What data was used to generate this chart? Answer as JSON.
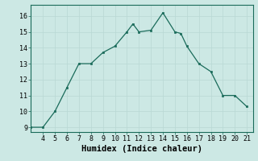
{
  "x": [
    3,
    4,
    5,
    6,
    7,
    8,
    9,
    10,
    11,
    11.5,
    12,
    13,
    14,
    15,
    15.5,
    16,
    17,
    18,
    19,
    20,
    21
  ],
  "y": [
    9.0,
    9.0,
    10.0,
    11.5,
    13.0,
    13.0,
    13.7,
    14.1,
    15.0,
    15.5,
    15.0,
    15.1,
    16.2,
    15.0,
    14.9,
    14.1,
    13.0,
    12.5,
    11.0,
    11.0,
    10.3
  ],
  "xlabel": "Humidex (Indice chaleur)",
  "xlim": [
    3,
    21.5
  ],
  "ylim": [
    8.7,
    16.7
  ],
  "xticks": [
    4,
    5,
    6,
    7,
    8,
    9,
    10,
    11,
    12,
    13,
    14,
    15,
    16,
    17,
    18,
    19,
    20,
    21
  ],
  "yticks": [
    9,
    10,
    11,
    12,
    13,
    14,
    15,
    16
  ],
  "line_color": "#1a6b5a",
  "marker_color": "#1a6b5a",
  "bg_color": "#cce8e4",
  "grid_color": "#b8d8d4",
  "tick_label_fontsize": 6,
  "xlabel_fontsize": 7.5
}
